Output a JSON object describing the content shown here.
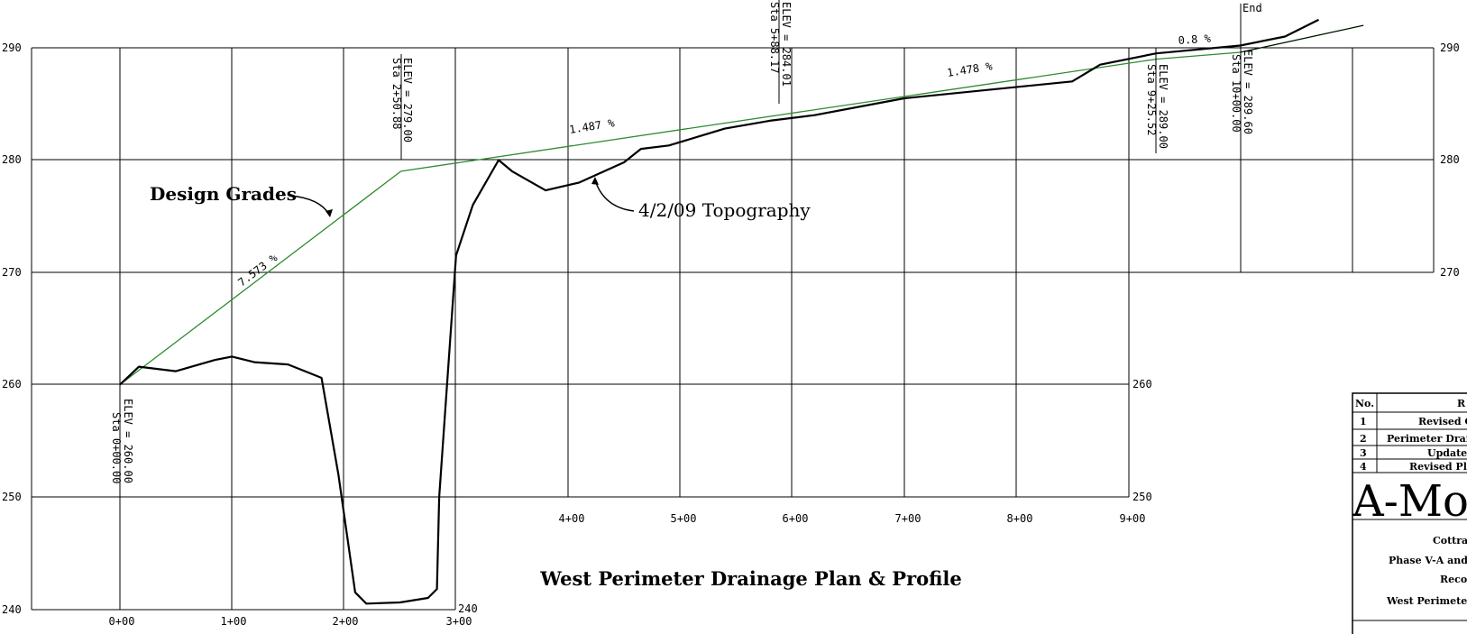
{
  "title": "West Perimeter Drainage Plan & Profile",
  "callouts": {
    "design": "Design Grades",
    "topo": "4/2/09 Topography",
    "end": "End"
  },
  "stations": [
    {
      "sta_label": "Sta 0+00.00",
      "elev_label": "ELEV = 260.00"
    },
    {
      "sta_label": "Sta 2+50.88",
      "elev_label": "ELEV = 279.00"
    },
    {
      "sta_label": "Sta 5+88.17",
      "elev_label": "ELEV = 284.01"
    },
    {
      "sta_label": "Sta 9+25.52",
      "elev_label": "ELEV = 289.00"
    },
    {
      "sta_label": "Sta 10+00.00",
      "elev_label": "ELEV = 289.60"
    }
  ],
  "slopes": [
    "7.573 %",
    "1.487 %",
    "1.478 %",
    "0.8 %"
  ],
  "y_ticks": [
    "240",
    "250",
    "260",
    "270",
    "280",
    "290"
  ],
  "x_ticks": [
    "0+00",
    "1+00",
    "2+00",
    "3+00",
    "4+00",
    "5+00",
    "6+00",
    "7+00",
    "8+00",
    "9+00"
  ],
  "titleblock": {
    "header_no": "No.",
    "header_rev": "R",
    "revisions": [
      {
        "no": "1",
        "desc": "Revised C"
      },
      {
        "no": "2",
        "desc": "Perimeter Drai"
      },
      {
        "no": "3",
        "desc": "Update"
      },
      {
        "no": "4",
        "desc": "Revised Pla"
      }
    ],
    "logo": "A-Mo",
    "lines": [
      "Cottra",
      "Phase V-A and",
      "Reco",
      "West Perimeter"
    ]
  },
  "chart_data": {
    "type": "line",
    "xlabel": "",
    "ylabel": "",
    "ylim": [
      240,
      290
    ],
    "series": [
      {
        "x": [
          0,
          250.88,
          588.17,
          925.52,
          1000,
          1110
        ],
        "y": [
          260.0,
          279.0,
          284.01,
          289.0,
          289.6,
          292.0
        ]
      },
      {
        "x": [
          0,
          17,
          50,
          85,
          100,
          120,
          150,
          170,
          180,
          195,
          210,
          220,
          250,
          275,
          283,
          285,
          300,
          315,
          338,
          350,
          380,
          410,
          450,
          465,
          490,
          520,
          540,
          580,
          620,
          700,
          850,
          875,
          925,
          1000,
          1040,
          1070
        ],
        "y": [
          260.0,
          261.6,
          261.2,
          262.2,
          262.5,
          262.0,
          261.8,
          261.0,
          260.6,
          252.0,
          241.5,
          240.5,
          240.6,
          241.0,
          241.8,
          250.0,
          271.5,
          276.0,
          280.0,
          279.0,
          277.3,
          278.0,
          279.8,
          281.0,
          281.3,
          282.2,
          282.8,
          283.5,
          284.0,
          285.5,
          287.0,
          288.5,
          289.5,
          290.2,
          291.0,
          292.5
        ]
      }
    ]
  }
}
